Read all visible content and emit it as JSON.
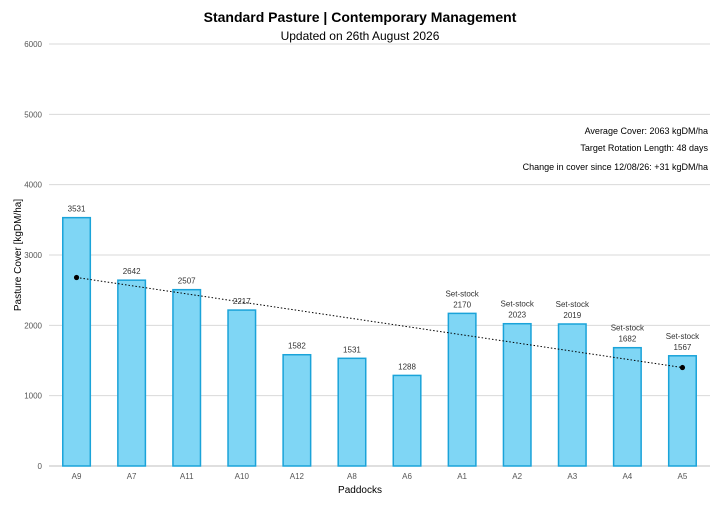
{
  "chart_data": {
    "type": "bar",
    "title": "Standard Pasture | Contemporary Management",
    "subtitle": "Updated on 26th August 2026",
    "xlabel": "Paddocks",
    "ylabel": "Pasture Cover [kgDM/ha]",
    "ylim": [
      0,
      6000
    ],
    "yticks": [
      0,
      1000,
      2000,
      3000,
      4000,
      5000,
      6000
    ],
    "grid": true,
    "categories": [
      "A9",
      "A7",
      "A11",
      "A10",
      "A12",
      "A8",
      "A6",
      "A1",
      "A2",
      "A3",
      "A4",
      "A5"
    ],
    "values": [
      3531,
      2642,
      2507,
      2217,
      1582,
      1531,
      1288,
      2170,
      2023,
      2019,
      1682,
      1567
    ],
    "bar_notes": [
      "",
      "",
      "",
      "",
      "",
      "",
      "",
      "Set-stock",
      "Set-stock",
      "Set-stock",
      "Set-stock",
      "Set-stock"
    ],
    "trendline": {
      "from_value": 2680,
      "to_value": 1400,
      "style": "dotted"
    },
    "colors": {
      "bar_fill": "#7fd6f5",
      "bar_stroke": "#1aa3d9",
      "grid": "#d9d9d9",
      "trend": "#000000"
    },
    "annotations": [
      "Average Cover: 2063 kgDM/ha",
      "Target Rotation Length: 48 days",
      "Change in cover since 12/08/26: +31 kgDM/ha"
    ]
  }
}
